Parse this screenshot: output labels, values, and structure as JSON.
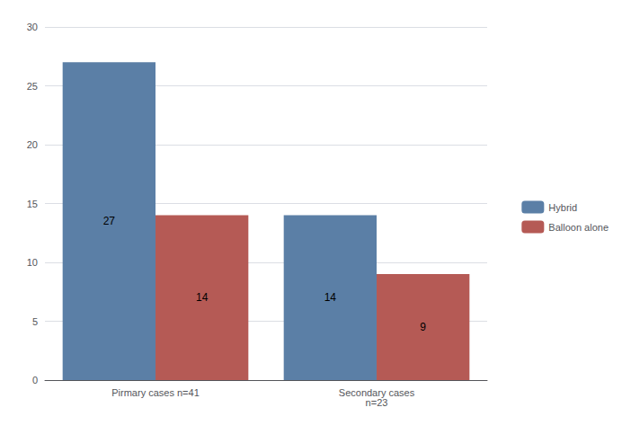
{
  "chart_data": {
    "type": "bar",
    "categories": [
      "Pirmary cases n=41",
      "Secondary cases\nn=23"
    ],
    "series": [
      {
        "name": "Hybrid",
        "color": "#5B7FA6",
        "values": [
          27,
          14
        ]
      },
      {
        "name": "Balloon alone",
        "color": "#B55A55",
        "values": [
          14,
          9
        ]
      }
    ],
    "ylim": [
      0,
      30
    ],
    "yticks": [
      0,
      5,
      10,
      15,
      20,
      25,
      30
    ],
    "grid": true,
    "legend": "right",
    "data_labels": true
  }
}
